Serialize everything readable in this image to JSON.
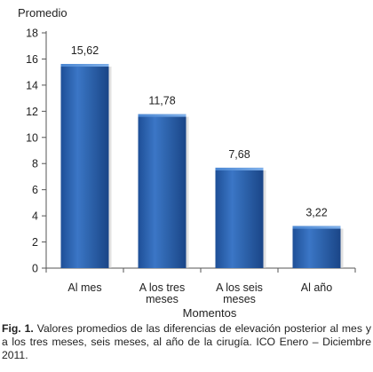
{
  "chart_data": {
    "type": "bar",
    "ylabel": "Promedio",
    "xlabel": "Momentos",
    "categories": [
      [
        "Al mes"
      ],
      [
        "A los tres",
        "meses"
      ],
      [
        "A los seis",
        "meses"
      ],
      [
        "Al año"
      ]
    ],
    "values": [
      15.62,
      11.78,
      7.68,
      3.22
    ],
    "value_labels": [
      "15,62",
      "11,78",
      "7,68",
      "3,22"
    ],
    "ylim": [
      0,
      18
    ],
    "yticks": [
      0,
      2,
      4,
      6,
      8,
      10,
      12,
      14,
      16,
      18
    ],
    "grid": false,
    "bar_color": "#2e64ad",
    "bar_highlight": "#5b93d8",
    "bar_shadow": "#1f4f96",
    "axis_color": "#555555"
  },
  "caption": {
    "label": "Fig. 1.",
    "text": " Valores promedios de las diferencias de elevación posterior al mes y a los tres meses, seis meses, al año de la cirugía. ICO Enero – Diciembre 2011."
  }
}
